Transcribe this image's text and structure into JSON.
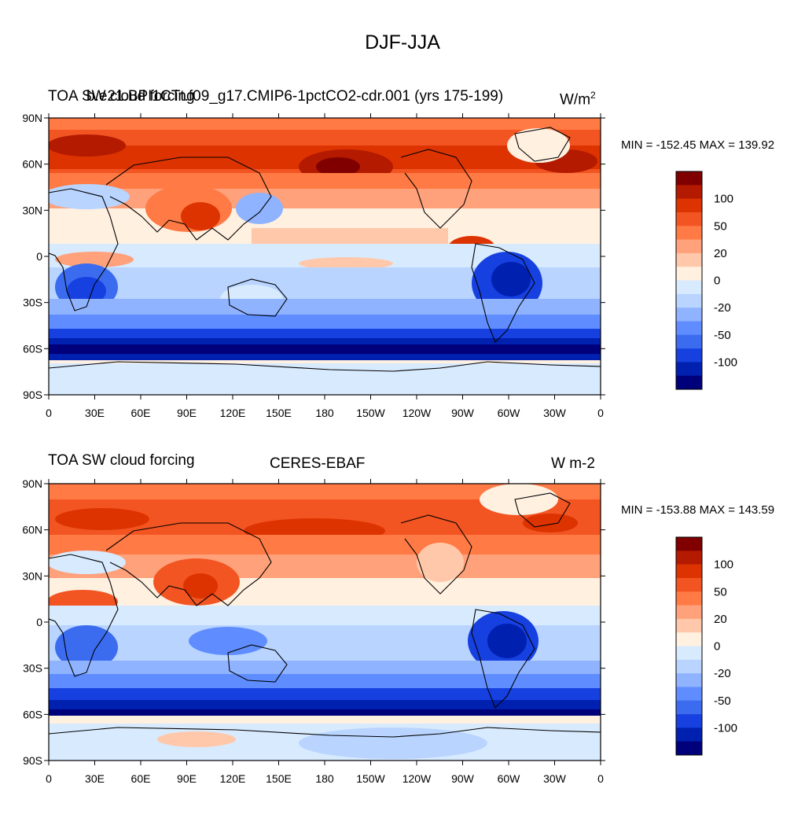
{
  "figure": {
    "title": "DJF-JJA"
  },
  "panels": [
    {
      "id": "model",
      "left_title": "TOA SW cloud forcing",
      "center_title": "b.e21.BPI1CTt.f09_g17.CMIP6-1pctCO2-cdr.001 (yrs 175-199)",
      "units_base": "W/m",
      "units_sup": "2",
      "min_max": "MIN = -152.45 MAX = 139.92"
    },
    {
      "id": "obs",
      "left_title": "TOA SW cloud forcing",
      "center_title": "CERES-EBAF",
      "units": "W m-2",
      "min_max": "MIN = -153.88 MAX = 143.59"
    }
  ],
  "axes": {
    "lat_labels": [
      "90N",
      "60N",
      "30N",
      "0",
      "30S",
      "60S",
      "90S"
    ],
    "lon_labels": [
      "0",
      "30E",
      "60E",
      "90E",
      "120E",
      "150E",
      "180",
      "150W",
      "120W",
      "90W",
      "60W",
      "30W",
      "0"
    ]
  },
  "colorbar": {
    "colors": [
      "#800000",
      "#b31a00",
      "#dd3300",
      "#f25522",
      "#ff7a44",
      "#ffa17a",
      "#ffc8aa",
      "#fff0e0",
      "#d8eafe",
      "#b8d4ff",
      "#8fb3ff",
      "#5f8dff",
      "#3b6cf0",
      "#1640e0",
      "#0020b0",
      "#00007a"
    ],
    "labels": [
      "100",
      "50",
      "20",
      "0",
      "-20",
      "-50",
      "-100"
    ]
  },
  "chart_data": {
    "type": "heatmap",
    "title": "DJF-JJA",
    "x_axis": "longitude",
    "y_axis": "latitude",
    "xlim": [
      0,
      360
    ],
    "ylim": [
      -90,
      90
    ],
    "projection": "cylindrical equidistant",
    "contour_levels": [
      -100,
      -50,
      -20,
      0,
      20,
      50,
      100
    ],
    "panels": [
      {
        "center_title": "b.e21.BPI1CTt.f09_g17.CMIP6-1pctCO2-cdr.001 (yrs 175-199)",
        "min": -152.45,
        "max": 139.92
      },
      {
        "center_title": "CERES-EBAF",
        "min": -153.88,
        "max": 143.59
      }
    ]
  }
}
